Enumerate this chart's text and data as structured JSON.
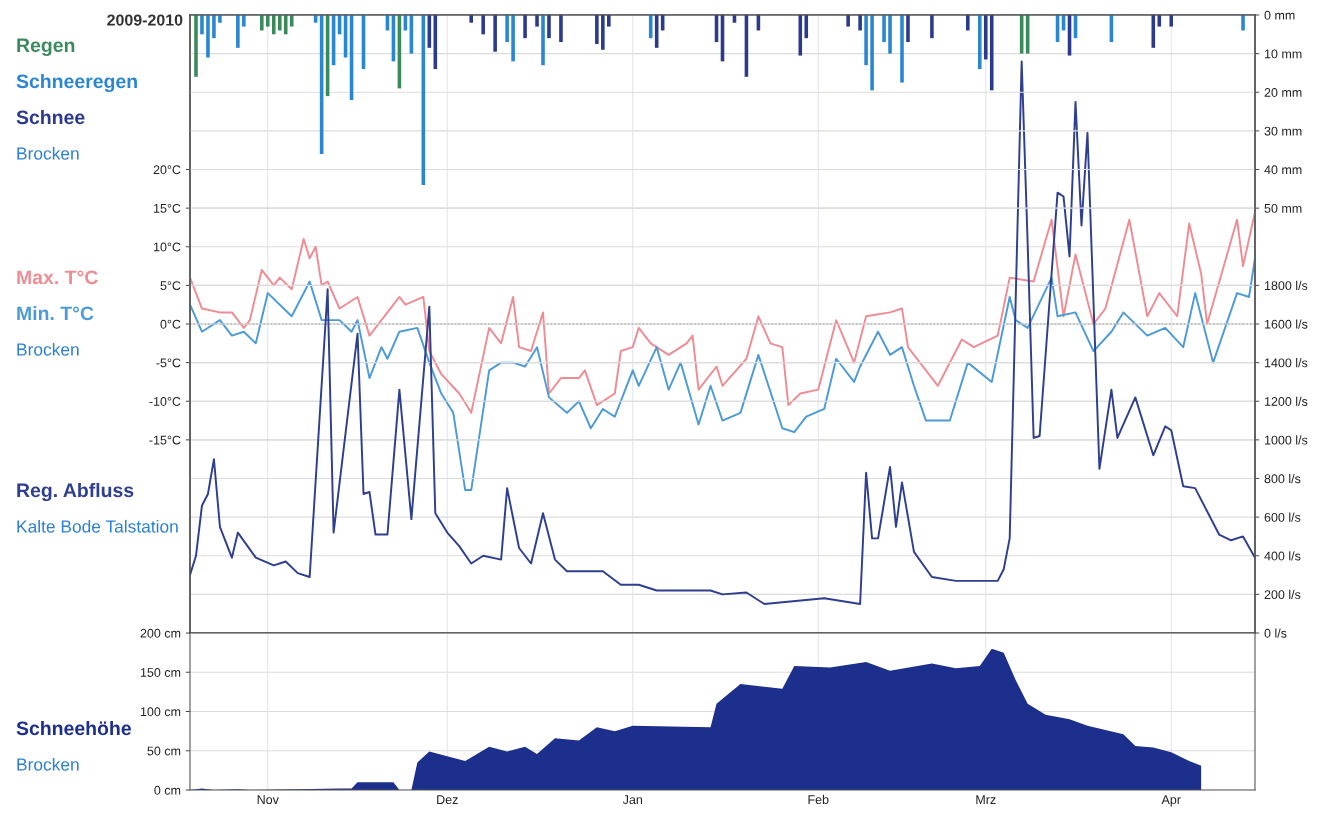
{
  "chart_data": [
    {
      "type": "line",
      "title": "2009-2010",
      "tick_labels": "y",
      "grid": true,
      "xlim": [
        "2009-10-19",
        "2010-04-15"
      ],
      "xticks": [
        {
          "value": "2009-11-01",
          "label": null
        },
        {
          "value": "2009-12-01",
          "label": null
        },
        {
          "value": "2010-01-01",
          "label": null
        },
        {
          "value": "2010-02-01",
          "label": null
        },
        {
          "value": "2010-03-01",
          "label": null
        },
        {
          "value": "2010-04-01",
          "label": null
        }
      ],
      "ylim": [
        -40,
        40
      ],
      "yticks": [
        {
          "value": -15,
          "label": "-15°C"
        },
        {
          "value": -10,
          "label": "-10°C"
        },
        {
          "value": -5,
          "label": "-5°C"
        },
        {
          "value": 0,
          "label": "0°C"
        },
        {
          "value": 5,
          "label": "5°C"
        },
        {
          "value": 10,
          "label": "10°C"
        },
        {
          "value": 15,
          "label": "15°C"
        },
        {
          "value": 20,
          "label": "20°C"
        }
      ],
      "y2lim": [
        0,
        3200
      ],
      "y2ticks": [
        {
          "value": 0,
          "label": "0 l/s"
        },
        {
          "value": 200,
          "label": "200 l/s"
        },
        {
          "value": 400,
          "label": "400 l/s"
        },
        {
          "value": 600,
          "label": "600 l/s"
        },
        {
          "value": 800,
          "label": "800 l/s"
        },
        {
          "value": 1000,
          "label": "1000 l/s"
        },
        {
          "value": 1200,
          "label": "1200 l/s"
        },
        {
          "value": 1400,
          "label": "1400 l/s"
        },
        {
          "value": 1600,
          "label": "1600 l/s"
        },
        {
          "value": 1800,
          "label": "1800 l/s"
        }
      ],
      "y3lim": [
        160,
        0
      ],
      "y3ticks": [
        {
          "value": 0,
          "label": "0 mm"
        },
        {
          "value": 10,
          "label": "10 mm"
        },
        {
          "value": 20,
          "label": "20 mm"
        },
        {
          "value": 30,
          "label": "30 mm"
        },
        {
          "value": 40,
          "label": "40 mm"
        },
        {
          "value": 50,
          "label": "50 mm"
        }
      ],
      "ref_lines": [
        {
          "axis": "y",
          "value": 0,
          "line_style": "dotted",
          "color": "#888888"
        }
      ],
      "annotations": [
        "Brocken",
        "Brocken",
        "Kalte Bode Talstation"
      ],
      "series": [
        {
          "name": "Regen",
          "type": "bar",
          "axis": "y3",
          "color": "#3a8a5c",
          "x": [
            "2009-10-20",
            "2009-10-31",
            "2009-11-01",
            "2009-11-02",
            "2009-11-03",
            "2009-11-04",
            "2009-11-05",
            "2009-11-11",
            "2009-11-23",
            "2010-03-07",
            "2010-03-08"
          ],
          "values": [
            16,
            4,
            3,
            5,
            4,
            5,
            3,
            21,
            19,
            10,
            10
          ]
        },
        {
          "name": "Schneeregen",
          "type": "bar",
          "axis": "y3",
          "color": "#2a86d0",
          "x": [
            "2009-10-21",
            "2009-10-22",
            "2009-10-23",
            "2009-10-24",
            "2009-10-27",
            "2009-10-28",
            "2009-11-09",
            "2009-11-10",
            "2009-11-12",
            "2009-11-13",
            "2009-11-14",
            "2009-11-15",
            "2009-11-17",
            "2009-11-21",
            "2009-11-22",
            "2009-11-24",
            "2009-11-25",
            "2009-11-27",
            "2009-12-11",
            "2009-12-12",
            "2009-12-17",
            "2010-01-04",
            "2010-02-09",
            "2010-02-10",
            "2010-02-12",
            "2010-02-13",
            "2010-02-15",
            "2010-02-28",
            "2010-03-13",
            "2010-03-14",
            "2010-03-16",
            "2010-03-22",
            "2010-04-13"
          ],
          "values": [
            5,
            11,
            6,
            2,
            8.5,
            3,
            2,
            36,
            13,
            5,
            11,
            22,
            14,
            4,
            12,
            4,
            10,
            44,
            7,
            12,
            13,
            6,
            13,
            19.5,
            7,
            10,
            17.5,
            14,
            7,
            4,
            6,
            7,
            4
          ]
        },
        {
          "name": "Schnee",
          "type": "bar",
          "axis": "y3",
          "color": "#2b3a8c",
          "x": [
            "2009-11-28",
            "2009-11-29",
            "2009-12-05",
            "2009-12-07",
            "2009-12-09",
            "2009-12-14",
            "2009-12-16",
            "2009-12-18",
            "2009-12-20",
            "2009-12-26",
            "2009-12-27",
            "2009-12-28",
            "2010-01-05",
            "2010-01-06",
            "2010-01-15",
            "2010-01-16",
            "2010-01-18",
            "2010-01-20",
            "2010-01-22",
            "2010-01-29",
            "2010-01-30",
            "2010-02-06",
            "2010-02-08",
            "2010-02-16",
            "2010-02-20",
            "2010-02-26",
            "2010-03-01",
            "2010-03-02",
            "2010-03-15",
            "2010-03-29",
            "2010-03-30",
            "2010-04-01"
          ],
          "values": [
            8.5,
            14,
            2,
            5,
            9.5,
            6,
            3,
            6,
            7,
            7.5,
            9,
            3,
            8.5,
            4,
            7,
            12,
            2,
            16,
            4,
            10.5,
            6,
            3,
            4,
            7,
            6,
            4,
            11.5,
            19.5,
            10.5,
            8.5,
            3,
            3
          ]
        },
        {
          "name": "Max. T°C",
          "type": "line",
          "axis": "y",
          "color": "#ee8c94",
          "x": [
            "2009-10-19",
            "2009-10-21",
            "2009-10-24",
            "2009-10-26",
            "2009-10-28",
            "2009-10-29",
            "2009-10-31",
            "2009-11-02",
            "2009-11-03",
            "2009-11-05",
            "2009-11-07",
            "2009-11-08",
            "2009-11-09",
            "2009-11-10",
            "2009-11-11",
            "2009-11-13",
            "2009-11-16",
            "2009-11-18",
            "2009-11-20",
            "2009-11-23",
            "2009-11-24",
            "2009-11-27",
            "2009-11-28",
            "2009-11-30",
            "2009-12-03",
            "2009-12-05",
            "2009-12-08",
            "2009-12-10",
            "2009-12-12",
            "2009-12-13",
            "2009-12-15",
            "2009-12-17",
            "2009-12-18",
            "2009-12-20",
            "2009-12-23",
            "2009-12-24",
            "2009-12-26",
            "2009-12-29",
            "2009-12-30",
            "2010-01-01",
            "2010-01-02",
            "2010-01-04",
            "2010-01-07",
            "2010-01-10",
            "2010-01-11",
            "2010-01-12",
            "2010-01-15",
            "2010-01-16",
            "2010-01-20",
            "2010-01-22",
            "2010-01-24",
            "2010-01-26",
            "2010-01-27",
            "2010-01-29",
            "2010-02-01",
            "2010-02-04",
            "2010-02-07",
            "2010-02-09",
            "2010-02-13",
            "2010-02-15",
            "2010-02-16",
            "2010-02-21",
            "2010-02-25",
            "2010-02-27",
            "2010-03-03",
            "2010-03-05",
            "2010-03-09",
            "2010-03-12",
            "2010-03-14",
            "2010-03-16",
            "2010-03-19",
            "2010-03-21",
            "2010-03-25",
            "2010-03-28",
            "2010-03-30",
            "2010-04-02",
            "2010-04-04",
            "2010-04-06",
            "2010-04-07",
            "2010-04-12",
            "2010-04-13",
            "2010-04-15"
          ],
          "values": [
            6,
            2,
            1.5,
            1.5,
            -0.5,
            0.5,
            7,
            5,
            6,
            4.5,
            11,
            8.5,
            10,
            5,
            5.5,
            2,
            3.5,
            -1.5,
            0.5,
            3.5,
            2.5,
            3.5,
            -3.5,
            -6.5,
            -9,
            -11.5,
            -0.5,
            -2.5,
            3.5,
            -3,
            -3.5,
            1.5,
            -9,
            -7,
            -7,
            -6,
            -10.5,
            -9,
            -3.5,
            -3,
            -0.5,
            -2.5,
            -4,
            -2.5,
            -1.5,
            -8.5,
            -5.5,
            -8,
            -4.5,
            1,
            -2.5,
            -3,
            -10.5,
            -9,
            -8.5,
            0.5,
            -5,
            1,
            1.5,
            2,
            -3,
            -8,
            -2,
            -3,
            -1.5,
            6,
            5.5,
            13.5,
            1,
            9,
            0,
            2,
            13.5,
            1,
            4,
            1,
            13,
            6.5,
            0,
            13.5,
            7.5,
            14.5
          ]
        },
        {
          "name": "Min. T°C",
          "type": "line",
          "axis": "y",
          "color": "#4d9bd6",
          "x": [
            "2009-10-19",
            "2009-10-21",
            "2009-10-24",
            "2009-10-26",
            "2009-10-28",
            "2009-10-30",
            "2009-11-01",
            "2009-11-05",
            "2009-11-08",
            "2009-11-10",
            "2009-11-13",
            "2009-11-15",
            "2009-11-16",
            "2009-11-18",
            "2009-11-20",
            "2009-11-21",
            "2009-11-23",
            "2009-11-26",
            "2009-11-28",
            "2009-11-30",
            "2009-12-02",
            "2009-12-04",
            "2009-12-05",
            "2009-12-08",
            "2009-12-10",
            "2009-12-12",
            "2009-12-14",
            "2009-12-16",
            "2009-12-18",
            "2009-12-21",
            "2009-12-23",
            "2009-12-25",
            "2009-12-27",
            "2009-12-29",
            "2010-01-01",
            "2010-01-02",
            "2010-01-05",
            "2010-01-07",
            "2010-01-09",
            "2010-01-12",
            "2010-01-14",
            "2010-01-16",
            "2010-01-19",
            "2010-01-22",
            "2010-01-26",
            "2010-01-28",
            "2010-01-30",
            "2010-02-02",
            "2010-02-04",
            "2010-02-07",
            "2010-02-08",
            "2010-02-11",
            "2010-02-13",
            "2010-02-15",
            "2010-02-17",
            "2010-02-19",
            "2010-02-23",
            "2010-02-26",
            "2010-03-02",
            "2010-03-05",
            "2010-03-06",
            "2010-03-08",
            "2010-03-12",
            "2010-03-13",
            "2010-03-16",
            "2010-03-19",
            "2010-03-22",
            "2010-03-24",
            "2010-03-28",
            "2010-03-31",
            "2010-04-03",
            "2010-04-05",
            "2010-04-08",
            "2010-04-12",
            "2010-04-14",
            "2010-04-15"
          ],
          "values": [
            2.5,
            -1,
            0.5,
            -1.5,
            -1,
            -2.5,
            4,
            1,
            5.5,
            0.5,
            0.5,
            -1,
            0.5,
            -7,
            -3,
            -4.5,
            -1,
            -0.5,
            -5,
            -9,
            -11.5,
            -21.5,
            -21.5,
            -6,
            -5,
            -5,
            -5.5,
            -3,
            -9.5,
            -11.5,
            -10,
            -13.5,
            -11,
            -12,
            -6,
            -8,
            -3,
            -8.5,
            -5,
            -13,
            -8,
            -12.5,
            -11.5,
            -4,
            -13.5,
            -14,
            -12,
            -11,
            -4.5,
            -7.5,
            -5.5,
            -1,
            -4,
            -3,
            -8,
            -12.5,
            -12.5,
            -5,
            -7.5,
            3.5,
            0.5,
            -0.5,
            6,
            1,
            1.5,
            -3.5,
            -1,
            1.5,
            -1.5,
            -0.5,
            -3,
            4,
            -5,
            4,
            3.5,
            8.5
          ]
        },
        {
          "name": "Reg. Abfluss",
          "type": "line",
          "axis": "y2",
          "color": "#2e3f8f",
          "x": [
            "2009-10-19",
            "2009-10-20",
            "2009-10-21",
            "2009-10-22",
            "2009-10-23",
            "2009-10-24",
            "2009-10-26",
            "2009-10-27",
            "2009-10-30",
            "2009-11-02",
            "2009-11-04",
            "2009-11-06",
            "2009-11-08",
            "2009-11-11",
            "2009-11-12",
            "2009-11-16",
            "2009-11-17",
            "2009-11-18",
            "2009-11-19",
            "2009-11-21",
            "2009-11-23",
            "2009-11-25",
            "2009-11-28",
            "2009-11-29",
            "2009-12-01",
            "2009-12-03",
            "2009-12-05",
            "2009-12-07",
            "2009-12-10",
            "2009-12-11",
            "2009-12-13",
            "2009-12-15",
            "2009-12-17",
            "2009-12-19",
            "2009-12-21",
            "2009-12-27",
            "2009-12-30",
            "2010-01-02",
            "2010-01-05",
            "2010-01-12",
            "2010-01-14",
            "2010-01-16",
            "2010-01-20",
            "2010-01-23",
            "2010-02-02",
            "2010-02-08",
            "2010-02-09",
            "2010-02-10",
            "2010-02-11",
            "2010-02-13",
            "2010-02-14",
            "2010-02-15",
            "2010-02-17",
            "2010-02-20",
            "2010-02-24",
            "2010-03-03",
            "2010-03-04",
            "2010-03-05",
            "2010-03-07",
            "2010-03-08",
            "2010-03-09",
            "2010-03-10",
            "2010-03-13",
            "2010-03-14",
            "2010-03-15",
            "2010-03-16",
            "2010-03-17",
            "2010-03-18",
            "2010-03-20",
            "2010-03-22",
            "2010-03-23",
            "2010-03-26",
            "2010-03-29",
            "2010-03-31",
            "2010-04-01",
            "2010-04-03",
            "2010-04-05",
            "2010-04-09",
            "2010-04-11",
            "2010-04-13",
            "2010-04-15"
          ],
          "values": [
            300,
            400,
            660,
            720,
            900,
            550,
            390,
            520,
            390,
            350,
            370,
            310,
            290,
            1780,
            520,
            1550,
            720,
            730,
            510,
            510,
            1260,
            590,
            1690,
            620,
            520,
            450,
            360,
            400,
            380,
            750,
            440,
            360,
            620,
            380,
            320,
            320,
            250,
            250,
            220,
            220,
            220,
            200,
            210,
            150,
            180,
            150,
            830,
            490,
            490,
            860,
            550,
            780,
            420,
            290,
            270,
            270,
            330,
            490,
            2960,
            2020,
            1010,
            1020,
            2280,
            2260,
            1950,
            2750,
            2110,
            2590,
            850,
            1260,
            1010,
            1220,
            920,
            1070,
            1050,
            760,
            750,
            510,
            480,
            500,
            390
          ]
        }
      ]
    },
    {
      "type": "area",
      "grid": true,
      "xlim": [
        "2009-10-19",
        "2010-04-15"
      ],
      "xticks": [
        {
          "value": "2009-11-01",
          "label": "Nov"
        },
        {
          "value": "2009-12-01",
          "label": "Dez"
        },
        {
          "value": "2010-01-01",
          "label": "Jan"
        },
        {
          "value": "2010-02-01",
          "label": "Feb"
        },
        {
          "value": "2010-03-01",
          "label": "Mrz"
        },
        {
          "value": "2010-04-01",
          "label": "Apr"
        }
      ],
      "ylim": [
        0,
        200
      ],
      "yticks": [
        {
          "value": 0,
          "label": "0 cm"
        },
        {
          "value": 50,
          "label": "50 cm"
        },
        {
          "value": 100,
          "label": "100 cm"
        },
        {
          "value": 150,
          "label": "150 cm"
        },
        {
          "value": 200,
          "label": "200 cm"
        }
      ],
      "annotations": [
        "Brocken"
      ],
      "series": [
        {
          "name": "Schneehöhe",
          "color": "#1c2f8c",
          "x": [
            "2009-10-19",
            "2009-10-21",
            "2009-10-23",
            "2009-10-27",
            "2009-10-29",
            "2009-11-13",
            "2009-11-15",
            "2009-11-16",
            "2009-11-22",
            "2009-11-23",
            "2009-11-25",
            "2009-11-26",
            "2009-11-28",
            "2009-12-01",
            "2009-12-04",
            "2009-12-08",
            "2009-12-11",
            "2009-12-14",
            "2009-12-16",
            "2009-12-19",
            "2009-12-23",
            "2009-12-26",
            "2009-12-29",
            "2010-01-01",
            "2010-01-14",
            "2010-01-15",
            "2010-01-19",
            "2010-01-26",
            "2010-01-28",
            "2010-02-03",
            "2010-02-09",
            "2010-02-13",
            "2010-02-20",
            "2010-02-24",
            "2010-02-28",
            "2010-03-02",
            "2010-03-04",
            "2010-03-06",
            "2010-03-08",
            "2010-03-11",
            "2010-03-15",
            "2010-03-18",
            "2010-03-24",
            "2010-03-26",
            "2010-03-29",
            "2010-04-01",
            "2010-04-04",
            "2010-04-06"
          ],
          "values": [
            0,
            2,
            0,
            1,
            0,
            2,
            2,
            10,
            10,
            0,
            0,
            35,
            49,
            43,
            37,
            55,
            49,
            55,
            46,
            66,
            63,
            80,
            75,
            82,
            80,
            110,
            135,
            129,
            158,
            156,
            163,
            152,
            161,
            155,
            158,
            180,
            175,
            140,
            110,
            96,
            90,
            82,
            71,
            56,
            54,
            48,
            37,
            31
          ]
        }
      ]
    }
  ]
}
